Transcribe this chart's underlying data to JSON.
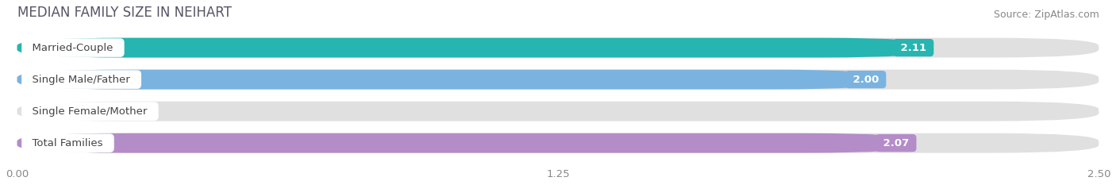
{
  "title": "MEDIAN FAMILY SIZE IN NEIHART",
  "source": "Source: ZipAtlas.com",
  "categories": [
    "Married-Couple",
    "Single Male/Father",
    "Single Female/Mother",
    "Total Families"
  ],
  "values": [
    2.11,
    2.0,
    0.0,
    2.07
  ],
  "bar_colors": [
    "#26b5b0",
    "#7ab3e0",
    "#f4a0b5",
    "#b48cc8"
  ],
  "bar_bg_color": "#e0e0e0",
  "xlim": [
    0,
    2.5
  ],
  "xticks": [
    0.0,
    1.25,
    2.5
  ],
  "xtick_labels": [
    "0.00",
    "1.25",
    "2.50"
  ],
  "label_fontsize": 9.5,
  "title_fontsize": 12,
  "source_fontsize": 9,
  "value_color": "white",
  "label_color": "#444444",
  "background_color": "#ffffff",
  "bar_bg_light": "#ebebeb"
}
